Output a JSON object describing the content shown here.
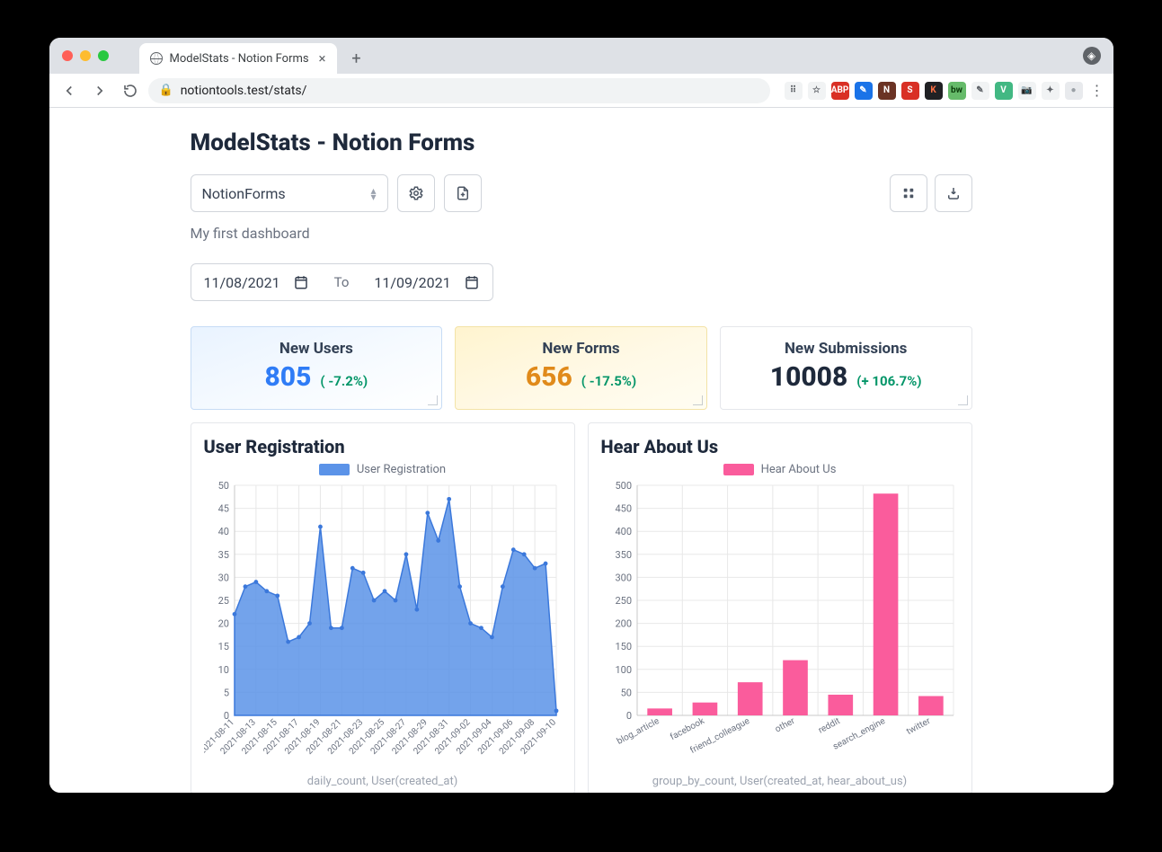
{
  "browser": {
    "tab_title": "ModelStats - Notion Forms",
    "url": "notiontools.test/stats/",
    "extensions": [
      {
        "bg": "#f1f3f4",
        "fg": "#5f6368",
        "txt": "⠿",
        "name": "translate-icon"
      },
      {
        "bg": "#f1f3f4",
        "fg": "#5f6368",
        "txt": "☆",
        "name": "star-icon"
      },
      {
        "bg": "#d93025",
        "fg": "#fff",
        "txt": "ABP",
        "name": "abp-ext"
      },
      {
        "bg": "#1a73e8",
        "fg": "#fff",
        "txt": "✎",
        "name": "pen-ext"
      },
      {
        "bg": "#6b3324",
        "fg": "#fff",
        "txt": "N",
        "name": "n-ext"
      },
      {
        "bg": "#d93025",
        "fg": "#fff",
        "txt": "S",
        "name": "s-ext"
      },
      {
        "bg": "#202124",
        "fg": "#ff7043",
        "txt": "K",
        "name": "k-ext"
      },
      {
        "bg": "#66bb6a",
        "fg": "#0b3d0b",
        "txt": "bw",
        "name": "bw-ext"
      },
      {
        "bg": "#f1f3f4",
        "fg": "#5f6368",
        "txt": "✎",
        "name": "pencil-ext"
      },
      {
        "bg": "#42b883",
        "fg": "#fff",
        "txt": "V",
        "name": "vue-ext"
      },
      {
        "bg": "#f1f3f4",
        "fg": "#5f6368",
        "txt": "📷",
        "name": "camera-ext"
      },
      {
        "bg": "#f1f3f4",
        "fg": "#5f6368",
        "txt": "✦",
        "name": "puzzle-ext"
      },
      {
        "bg": "#e8eaed",
        "fg": "#9aa0a6",
        "txt": "●",
        "name": "avatar-ext"
      },
      {
        "bg": "transparent",
        "fg": "#5f6368",
        "txt": "⋮",
        "name": "menu-ext"
      }
    ]
  },
  "page": {
    "title": "ModelStats - Notion Forms",
    "workspace_select": "NotionForms",
    "dashboard_name": "My first dashboard",
    "date_from": "11/08/2021",
    "date_sep": "To",
    "date_to": "11/09/2021"
  },
  "stats": [
    {
      "title": "New Users",
      "value": "805",
      "delta": "( -7.2%)",
      "val_color": "blue",
      "bg": "blue"
    },
    {
      "title": "New Forms",
      "value": "656",
      "delta": "( -17.5%)",
      "val_color": "orange",
      "bg": "yellow"
    },
    {
      "title": "New Submissions",
      "value": "10008",
      "delta": "(+ 106.7%)",
      "val_color": "dark",
      "bg": "plain"
    }
  ],
  "chart_registration": {
    "type": "area",
    "title": "User Registration",
    "legend": "User Registration",
    "footer": "daily_count, User(created_at)",
    "color": "#5b93e8",
    "fill_opacity": 0.85,
    "marker_color": "#3b78db",
    "grid_color": "#e8e8e8",
    "axis_color": "#c9c9c9",
    "label_color": "#6b7280",
    "ylim": [
      0,
      50
    ],
    "ytick_step": 5,
    "x_labels": [
      "2021-08-11",
      "2021-08-13",
      "2021-08-15",
      "2021-08-17",
      "2021-08-19",
      "2021-08-21",
      "2021-08-23",
      "2021-08-25",
      "2021-08-27",
      "2021-08-29",
      "2021-08-31",
      "2021-09-02",
      "2021-09-04",
      "2021-09-06",
      "2021-09-08",
      "2021-09-10"
    ],
    "values": [
      22,
      28,
      29,
      27,
      26,
      16,
      17,
      20,
      41,
      19,
      19,
      32,
      31,
      25,
      27,
      25,
      35,
      23,
      44,
      38,
      47,
      28,
      20,
      19,
      17,
      28,
      36,
      35,
      32,
      33,
      1
    ]
  },
  "chart_hear": {
    "type": "bar",
    "title": "Hear About Us",
    "legend": "Hear About Us",
    "footer": "group_by_count, User(created_at, hear_about_us)",
    "color": "#fa5c9c",
    "grid_color": "#e8e8e8",
    "axis_color": "#c9c9c9",
    "label_color": "#6b7280",
    "ylim": [
      0,
      500
    ],
    "ytick_step": 50,
    "categories": [
      "blog_article",
      "facebook",
      "friend_colleague",
      "other",
      "reddit",
      "search_engine",
      "twitter"
    ],
    "values": [
      15,
      28,
      72,
      120,
      45,
      482,
      42
    ],
    "bar_width": 0.55
  }
}
